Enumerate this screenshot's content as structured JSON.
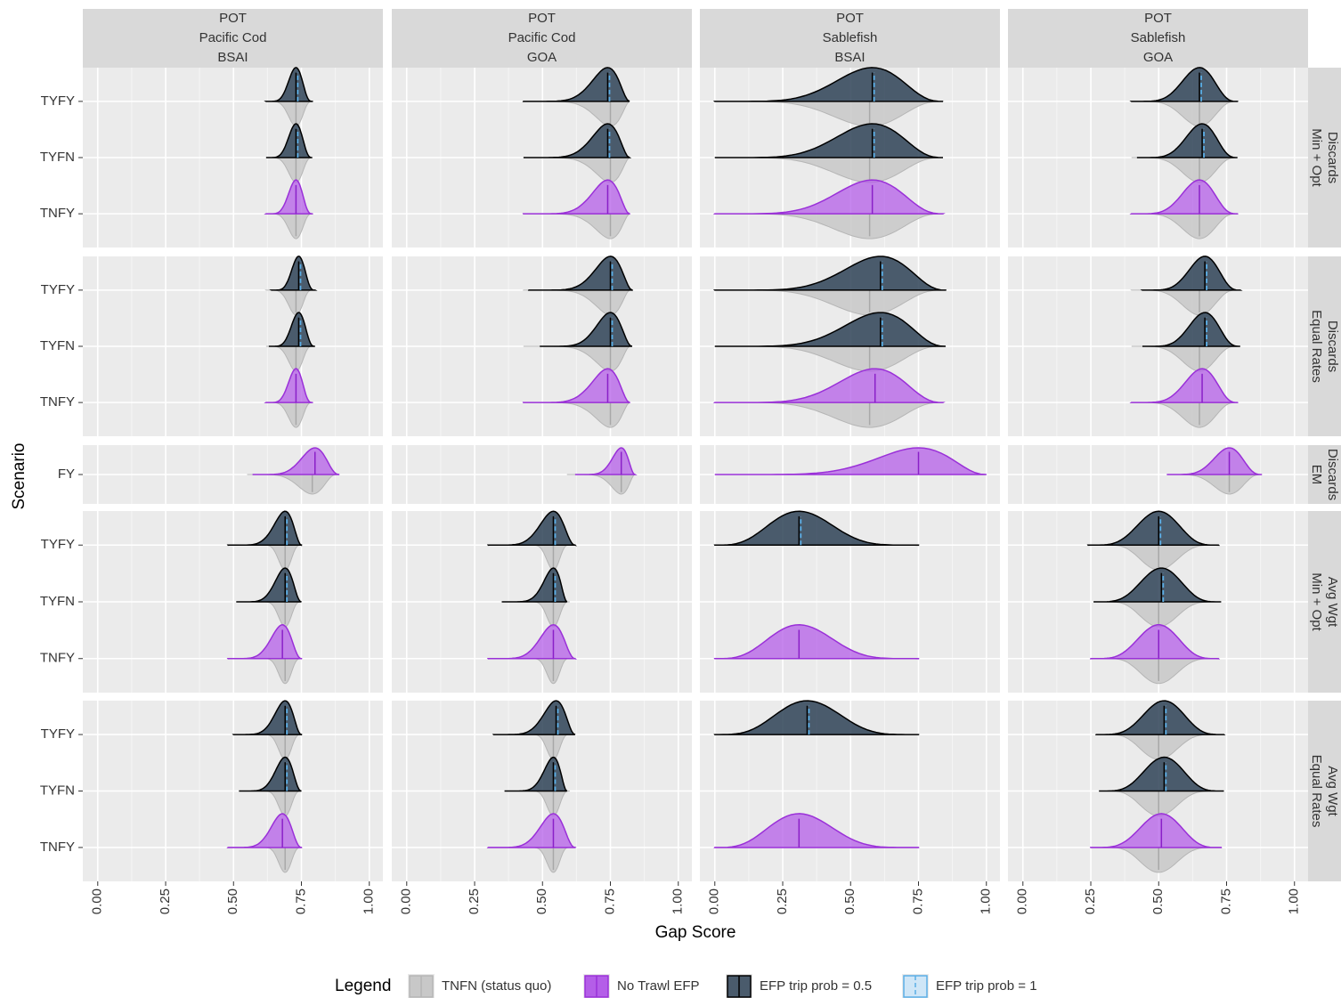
{
  "chart_data": {
    "type": "ridgeline",
    "x_label": "Gap Score",
    "y_label": "Scenario",
    "xlim": [
      -0.055,
      1.05
    ],
    "xticks": [
      {
        "value": 0,
        "label": "0.00"
      },
      {
        "value": 0.25,
        "label": "0.25"
      },
      {
        "value": 0.5,
        "label": "0.50"
      },
      {
        "value": 0.75,
        "label": "0.75"
      },
      {
        "value": 1,
        "label": "1.00"
      }
    ],
    "grid": true,
    "columns": [
      {
        "labels": [
          "POT",
          "Pacific Cod",
          "BSAI"
        ]
      },
      {
        "labels": [
          "POT",
          "Pacific Cod",
          "GOA"
        ]
      },
      {
        "labels": [
          "POT",
          "Sablefish",
          "BSAI"
        ]
      },
      {
        "labels": [
          "POT",
          "Sablefish",
          "GOA"
        ]
      }
    ],
    "rows": [
      {
        "labels": [
          "Discards",
          "Min + Opt"
        ],
        "scenarios": [
          "TYFY",
          "TYFN",
          "TNFY"
        ]
      },
      {
        "labels": [
          "Discards",
          "Equal Rates"
        ],
        "scenarios": [
          "TYFY",
          "TYFN",
          "TNFY"
        ]
      },
      {
        "labels": [
          "Discards",
          "EM"
        ],
        "scenarios": [
          "FY"
        ]
      },
      {
        "labels": [
          "Avg Wgt",
          "Min + Opt"
        ],
        "scenarios": [
          "TYFY",
          "TYFN",
          "TNFY"
        ]
      },
      {
        "labels": [
          "Avg Wgt",
          "Equal Rates"
        ],
        "scenarios": [
          "TYFY",
          "TYFN",
          "TNFY"
        ]
      }
    ],
    "legend": {
      "title": "Legend",
      "position": "bottom"
    },
    "series": [
      {
        "name": "TNFN (status quo)",
        "color": "#c8c8c8"
      },
      {
        "name": "No Trawl EFP",
        "color": "#b45ee8"
      },
      {
        "name": "EFP trip prob = 0.5",
        "color": "#2e4256"
      },
      {
        "name": "EFP trip prob = 1",
        "color": "#5aaee6"
      }
    ],
    "panels": [
      [
        {
          "status_quo": {
            "min": 0.62,
            "median": 0.73,
            "max": 0.79
          },
          "ridges": [
            {
              "min": 0.62,
              "median": 0.73,
              "max": 0.79
            },
            {
              "min": 0.62,
              "median": 0.73,
              "max": 0.79
            },
            {
              "min": 0.62,
              "median": 0.73,
              "max": 0.79
            }
          ]
        },
        {
          "status_quo": {
            "min": 0.43,
            "median": 0.75,
            "max": 0.82
          },
          "ridges": [
            {
              "min": 0.43,
              "median": 0.74,
              "max": 0.82
            },
            {
              "min": 0.43,
              "median": 0.74,
              "max": 0.82
            },
            {
              "min": 0.43,
              "median": 0.74,
              "max": 0.82
            }
          ]
        },
        {
          "status_quo": {
            "min": 0.0,
            "median": 0.57,
            "max": 0.84
          },
          "ridges": [
            {
              "min": 0.0,
              "median": 0.58,
              "max": 0.84
            },
            {
              "min": 0.0,
              "median": 0.58,
              "max": 0.84
            },
            {
              "min": 0.0,
              "median": 0.58,
              "max": 0.84
            }
          ]
        },
        {
          "status_quo": {
            "min": 0.4,
            "median": 0.65,
            "max": 0.79
          },
          "ridges": [
            {
              "min": 0.4,
              "median": 0.65,
              "max": 0.79
            },
            {
              "min": 0.42,
              "median": 0.66,
              "max": 0.79
            },
            {
              "min": 0.4,
              "median": 0.65,
              "max": 0.79
            }
          ]
        }
      ],
      [
        {
          "status_quo": {
            "min": 0.62,
            "median": 0.73,
            "max": 0.79
          },
          "ridges": [
            {
              "min": 0.64,
              "median": 0.74,
              "max": 0.8
            },
            {
              "min": 0.63,
              "median": 0.74,
              "max": 0.8
            },
            {
              "min": 0.62,
              "median": 0.73,
              "max": 0.79
            }
          ]
        },
        {
          "status_quo": {
            "min": 0.43,
            "median": 0.75,
            "max": 0.82
          },
          "ridges": [
            {
              "min": 0.45,
              "median": 0.75,
              "max": 0.83
            },
            {
              "min": 0.49,
              "median": 0.75,
              "max": 0.83
            },
            {
              "min": 0.43,
              "median": 0.74,
              "max": 0.82
            }
          ]
        },
        {
          "status_quo": {
            "min": 0.0,
            "median": 0.57,
            "max": 0.84
          },
          "ridges": [
            {
              "min": 0.0,
              "median": 0.61,
              "max": 0.85
            },
            {
              "min": 0.0,
              "median": 0.61,
              "max": 0.85
            },
            {
              "min": 0.0,
              "median": 0.59,
              "max": 0.84
            }
          ]
        },
        {
          "status_quo": {
            "min": 0.4,
            "median": 0.65,
            "max": 0.79
          },
          "ridges": [
            {
              "min": 0.44,
              "median": 0.67,
              "max": 0.8
            },
            {
              "min": 0.44,
              "median": 0.67,
              "max": 0.8
            },
            {
              "min": 0.4,
              "median": 0.66,
              "max": 0.79
            }
          ]
        }
      ],
      [
        {
          "status_quo": {
            "min": 0.55,
            "median": 0.79,
            "max": 0.88
          },
          "ridges": [
            {
              "min": 0.57,
              "median": 0.8,
              "max": 0.89
            }
          ]
        },
        {
          "status_quo": {
            "min": 0.59,
            "median": 0.79,
            "max": 0.84
          },
          "ridges": [
            {
              "min": 0.62,
              "median": 0.79,
              "max": 0.84
            }
          ]
        },
        {
          "status_quo": null,
          "ridges": [
            {
              "min": 0.0,
              "median": 0.75,
              "max": 1.0
            }
          ]
        },
        {
          "status_quo": {
            "min": 0.53,
            "median": 0.76,
            "max": 0.88
          },
          "ridges": [
            {
              "min": 0.53,
              "median": 0.76,
              "max": 0.88
            }
          ]
        }
      ],
      [
        {
          "status_quo": {
            "min": 0.6,
            "median": 0.69,
            "max": 0.75
          },
          "ridges": [
            {
              "min": 0.48,
              "median": 0.69,
              "max": 0.75
            },
            {
              "min": 0.51,
              "median": 0.69,
              "max": 0.75
            },
            {
              "min": 0.48,
              "median": 0.68,
              "max": 0.75
            }
          ]
        },
        {
          "status_quo": {
            "min": 0.45,
            "median": 0.54,
            "max": 0.6
          },
          "ridges": [
            {
              "min": 0.3,
              "median": 0.54,
              "max": 0.62
            },
            {
              "min": 0.35,
              "median": 0.54,
              "max": 0.59
            },
            {
              "min": 0.3,
              "median": 0.54,
              "max": 0.62
            }
          ]
        },
        {
          "status_quo": null,
          "ridges": [
            {
              "min": 0.0,
              "median": 0.31,
              "max": 0.75
            },
            null,
            {
              "min": 0.0,
              "median": 0.31,
              "max": 0.75
            }
          ]
        },
        {
          "status_quo": {
            "min": 0.3,
            "median": 0.5,
            "max": 0.72
          },
          "ridges": [
            {
              "min": 0.24,
              "median": 0.5,
              "max": 0.72
            },
            {
              "min": 0.26,
              "median": 0.51,
              "max": 0.73
            },
            {
              "min": 0.25,
              "median": 0.5,
              "max": 0.72
            }
          ]
        }
      ],
      [
        {
          "status_quo": {
            "min": 0.6,
            "median": 0.69,
            "max": 0.75
          },
          "ridges": [
            {
              "min": 0.5,
              "median": 0.69,
              "max": 0.75
            },
            {
              "min": 0.52,
              "median": 0.69,
              "max": 0.75
            },
            {
              "min": 0.48,
              "median": 0.68,
              "max": 0.75
            }
          ]
        },
        {
          "status_quo": {
            "min": 0.45,
            "median": 0.54,
            "max": 0.6
          },
          "ridges": [
            {
              "min": 0.32,
              "median": 0.55,
              "max": 0.62
            },
            {
              "min": 0.36,
              "median": 0.54,
              "max": 0.59
            },
            {
              "min": 0.3,
              "median": 0.54,
              "max": 0.62
            }
          ]
        },
        {
          "status_quo": null,
          "ridges": [
            {
              "min": 0.0,
              "median": 0.34,
              "max": 0.75
            },
            null,
            {
              "min": 0.0,
              "median": 0.31,
              "max": 0.75
            }
          ]
        },
        {
          "status_quo": {
            "min": 0.3,
            "median": 0.5,
            "max": 0.72
          },
          "ridges": [
            {
              "min": 0.27,
              "median": 0.52,
              "max": 0.74
            },
            {
              "min": 0.28,
              "median": 0.52,
              "max": 0.74
            },
            {
              "min": 0.25,
              "median": 0.51,
              "max": 0.73
            }
          ]
        }
      ]
    ]
  }
}
